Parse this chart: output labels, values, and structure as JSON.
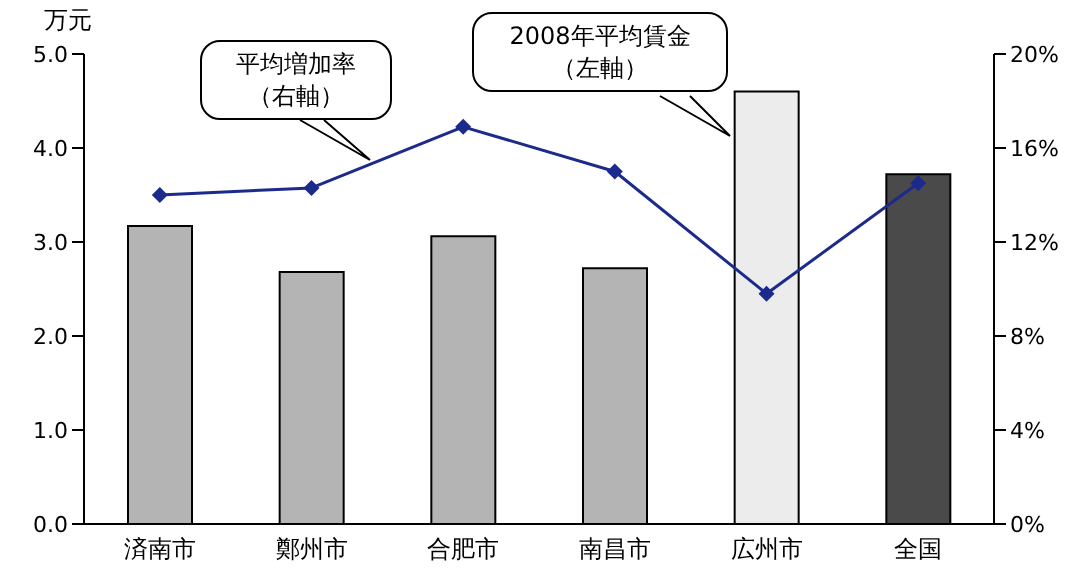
{
  "chart_data": {
    "type": "bar",
    "ylabel": "万元",
    "categories": [
      "済南市",
      "鄭州市",
      "合肥市",
      "南昌市",
      "広州市",
      "全国"
    ],
    "series": [
      {
        "name": "2008年平均賃金（左軸）",
        "colors": [
          "#b4b4b4",
          "#b4b4b4",
          "#b4b4b4",
          "#b4b4b4",
          "#ececec",
          "#4a4a4a"
        ],
        "values": [
          3.17,
          2.68,
          3.06,
          2.72,
          4.6,
          3.72
        ]
      },
      {
        "name": "平均増加率（右軸）",
        "type": "line",
        "axis": "y2",
        "color": "#1c2a8c",
        "marker": "diamond",
        "values": [
          14.0,
          14.3,
          16.9,
          15.0,
          9.8,
          14.5
        ]
      }
    ],
    "ylim": [
      0,
      5
    ],
    "yticks": [
      {
        "value": 0,
        "label": "0.0"
      },
      {
        "value": 1,
        "label": "1.0"
      },
      {
        "value": 2,
        "label": "2.0"
      },
      {
        "value": 3,
        "label": "3.0"
      },
      {
        "value": 4,
        "label": "4.0"
      },
      {
        "value": 5,
        "label": "5.0"
      }
    ],
    "y2lim": [
      0,
      20
    ],
    "y2ticks": [
      {
        "value": 0,
        "label": "0%"
      },
      {
        "value": 4,
        "label": "4%"
      },
      {
        "value": 8,
        "label": "8%"
      },
      {
        "value": 12,
        "label": "12%"
      },
      {
        "value": 16,
        "label": "16%"
      },
      {
        "value": 20,
        "label": "20%"
      }
    ],
    "grid": false,
    "legend": false
  }
}
